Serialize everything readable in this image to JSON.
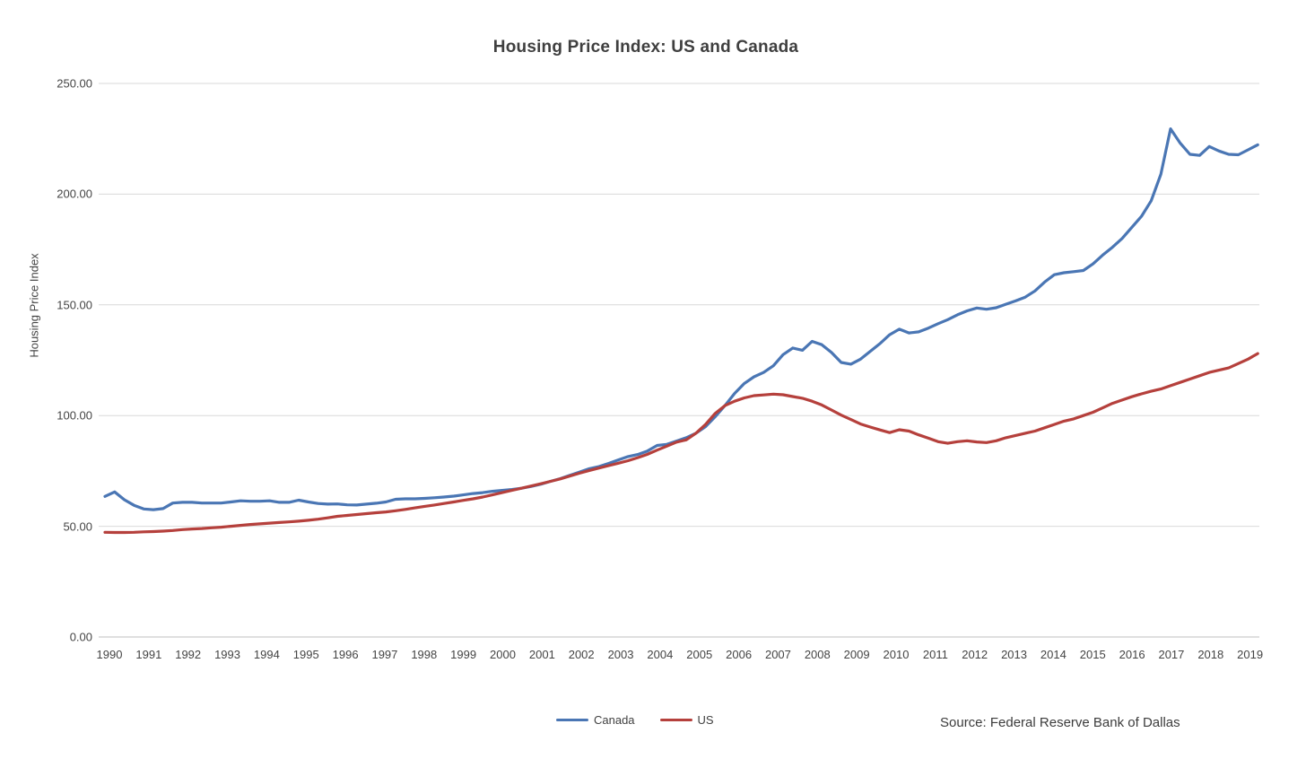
{
  "title": "Housing Price Index: US and Canada",
  "source": "Source: Federal Reserve Bank of Dallas",
  "colors": {
    "canada": "#4a76b4",
    "us": "#b5403c",
    "gridline": "#d9d9d9",
    "axis_line": "#bfbfbf"
  },
  "y_axis": {
    "label": "Housing Price Index",
    "ticks": [
      {
        "value": 250,
        "label": "250.00"
      },
      {
        "value": 200,
        "label": "200.00"
      },
      {
        "value": 150,
        "label": "150.00"
      },
      {
        "value": 100,
        "label": "100.00"
      },
      {
        "value": 50,
        "label": "50.00"
      },
      {
        "value": 0,
        "label": "0.00"
      }
    ]
  },
  "x_axis": {
    "years": [
      "1990",
      "1991",
      "1992",
      "1993",
      "1994",
      "1995",
      "1996",
      "1997",
      "1998",
      "1999",
      "2000",
      "2001",
      "2002",
      "2003",
      "2004",
      "2005",
      "2006",
      "2007",
      "2008",
      "2009",
      "2010",
      "2011",
      "2012",
      "2013",
      "2014",
      "2015",
      "2016",
      "2017",
      "2018",
      "2019"
    ]
  },
  "legend": [
    {
      "label": "Canada",
      "color": "#4a76b4"
    },
    {
      "label": "US",
      "color": "#b5403c"
    }
  ],
  "chart_data": {
    "type": "line",
    "title": "Housing Price Index: US and Canada",
    "xlabel": "",
    "ylabel": "Housing Price Index",
    "ylim": [
      0,
      250
    ],
    "grid": "horizontal",
    "legend_position": "bottom-center",
    "x_unit": "quarter",
    "x_start": "1990Q1",
    "x_end": "2019Q4",
    "categories_years": [
      "1990",
      "1991",
      "1992",
      "1993",
      "1994",
      "1995",
      "1996",
      "1997",
      "1998",
      "1999",
      "2000",
      "2001",
      "2002",
      "2003",
      "2004",
      "2005",
      "2006",
      "2007",
      "2008",
      "2009",
      "2010",
      "2011",
      "2012",
      "2013",
      "2014",
      "2015",
      "2016",
      "2017",
      "2018",
      "2019"
    ],
    "series": [
      {
        "name": "Canada",
        "color": "#4a76b4",
        "values": [
          63.5,
          65.5,
          62.0,
          59.5,
          57.8,
          57.5,
          58.0,
          60.5,
          60.8,
          60.8,
          60.5,
          60.5,
          60.5,
          61.0,
          61.5,
          61.3,
          61.3,
          61.5,
          60.8,
          60.8,
          61.8,
          61.0,
          60.3,
          60.0,
          60.1,
          59.7,
          59.6,
          60.0,
          60.4,
          61.0,
          62.2,
          62.4,
          62.4,
          62.6,
          62.9,
          63.2,
          63.6,
          64.2,
          64.8,
          65.2,
          65.8,
          66.2,
          66.6,
          67.2,
          68.0,
          69.0,
          70.3,
          71.5,
          73.0,
          74.5,
          76.0,
          77.0,
          78.4,
          80.0,
          81.5,
          82.4,
          84.0,
          86.5,
          87.0,
          88.5,
          90.0,
          92.0,
          95.0,
          99.5,
          104.5,
          110.0,
          114.5,
          117.5,
          119.5,
          122.5,
          127.5,
          130.5,
          129.5,
          133.5,
          132.0,
          128.5,
          124.0,
          123.2,
          125.5,
          129.0,
          132.5,
          136.5,
          139.0,
          137.3,
          137.8,
          139.5,
          141.5,
          143.3,
          145.5,
          147.3,
          148.6,
          148.0,
          148.7,
          150.3,
          151.8,
          153.5,
          156.3,
          160.3,
          163.6,
          164.5,
          165.0,
          165.5,
          168.5,
          172.5,
          176.0,
          180.0,
          185.0,
          190.0,
          197.0,
          209.0,
          229.5,
          223.0,
          218.0,
          217.5,
          221.5,
          219.5,
          218.0,
          217.8,
          220.0,
          222.3
        ]
      },
      {
        "name": "US",
        "color": "#b5403c",
        "values": [
          47.3,
          47.2,
          47.2,
          47.3,
          47.5,
          47.6,
          47.8,
          48.1,
          48.5,
          48.8,
          49.0,
          49.3,
          49.6,
          50.0,
          50.4,
          50.8,
          51.1,
          51.4,
          51.7,
          52.0,
          52.3,
          52.7,
          53.2,
          53.8,
          54.5,
          54.9,
          55.3,
          55.7,
          56.1,
          56.5,
          57.0,
          57.6,
          58.3,
          59.0,
          59.6,
          60.3,
          61.0,
          61.7,
          62.4,
          63.2,
          64.2,
          65.2,
          66.2,
          67.2,
          68.2,
          69.2,
          70.3,
          71.4,
          72.7,
          74.0,
          75.2,
          76.3,
          77.4,
          78.5,
          79.6,
          81.0,
          82.5,
          84.4,
          86.2,
          88.0,
          89.0,
          92.0,
          96.0,
          101.0,
          104.5,
          106.5,
          108.0,
          109.0,
          109.3,
          109.7,
          109.4,
          108.6,
          107.8,
          106.5,
          104.8,
          102.5,
          100.2,
          98.2,
          96.2,
          94.8,
          93.5,
          92.3,
          93.6,
          93.0,
          91.3,
          89.8,
          88.2,
          87.5,
          88.2,
          88.6,
          88.1,
          87.8,
          88.6,
          90.0,
          91.0,
          92.0,
          93.0,
          94.5,
          96.0,
          97.5,
          98.5,
          100.0,
          101.5,
          103.5,
          105.5,
          107.0,
          108.5,
          109.8,
          111.0,
          112.0,
          113.5,
          115.0,
          116.5,
          118.0,
          119.5,
          120.5,
          121.5,
          123.5,
          125.5,
          128.0
        ]
      }
    ]
  }
}
